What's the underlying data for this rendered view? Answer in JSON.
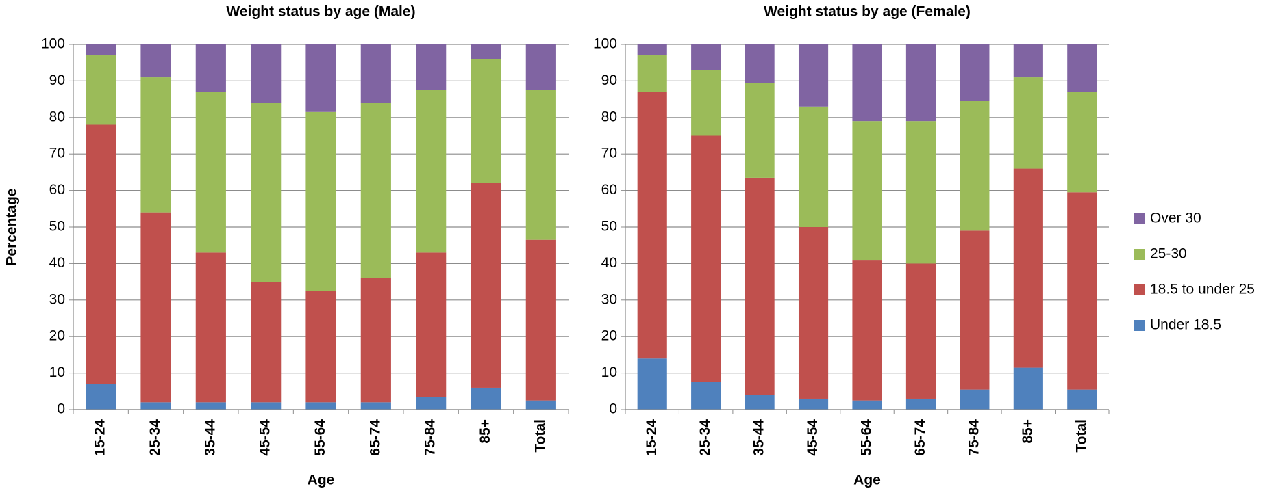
{
  "chart_data": [
    {
      "type": "stacked_bar",
      "title": "Weight status by age (Male)",
      "xlabel": "Age",
      "ylabel": "Percentage",
      "categories": [
        "15-24",
        "25-34",
        "35-44",
        "45-54",
        "55-64",
        "65-74",
        "75-84",
        "85+",
        "Total"
      ],
      "series": [
        {
          "name": "Under 18.5",
          "color": "#4f81bd",
          "values": [
            7,
            2,
            2,
            2,
            2,
            2,
            3.5,
            6,
            2.5
          ]
        },
        {
          "name": "18.5 to under 25",
          "color": "#c0504d",
          "values": [
            71,
            52,
            41,
            33,
            30.5,
            34,
            39.5,
            56,
            44
          ]
        },
        {
          "name": "25-30",
          "color": "#9bbb59",
          "values": [
            19,
            37,
            44,
            49,
            49,
            48,
            44.5,
            34,
            41
          ]
        },
        {
          "name": "Over 30",
          "color": "#8064a2",
          "values": [
            3,
            9,
            13,
            16,
            18.5,
            16,
            12.5,
            4,
            12.5
          ]
        }
      ],
      "ylim": [
        0,
        100
      ],
      "yticks": [
        0,
        10,
        20,
        30,
        40,
        50,
        60,
        70,
        80,
        90,
        100
      ],
      "grid": true
    },
    {
      "type": "stacked_bar",
      "title": "Weight status by age (Female)",
      "xlabel": "Age",
      "categories": [
        "15-24",
        "25-34",
        "35-44",
        "45-54",
        "55-64",
        "65-74",
        "75-84",
        "85+",
        "Total"
      ],
      "series": [
        {
          "name": "Under 18.5",
          "color": "#4f81bd",
          "values": [
            14,
            7.5,
            4,
            3,
            2.5,
            3,
            5.5,
            11.5,
            5.5
          ]
        },
        {
          "name": "18.5 to under 25",
          "color": "#c0504d",
          "values": [
            73,
            67.5,
            59.5,
            47,
            38.5,
            37,
            43.5,
            54.5,
            54
          ]
        },
        {
          "name": "25-30",
          "color": "#9bbb59",
          "values": [
            10,
            18,
            26,
            33,
            38,
            39,
            35.5,
            25,
            27.5
          ]
        },
        {
          "name": "Over 30",
          "color": "#8064a2",
          "values": [
            3,
            7,
            10.5,
            17,
            21,
            21,
            15.5,
            9,
            13
          ]
        }
      ],
      "ylim": [
        0,
        100
      ],
      "yticks": [
        0,
        10,
        20,
        30,
        40,
        50,
        60,
        70,
        80,
        90,
        100
      ],
      "grid": true,
      "legend": "right"
    }
  ]
}
